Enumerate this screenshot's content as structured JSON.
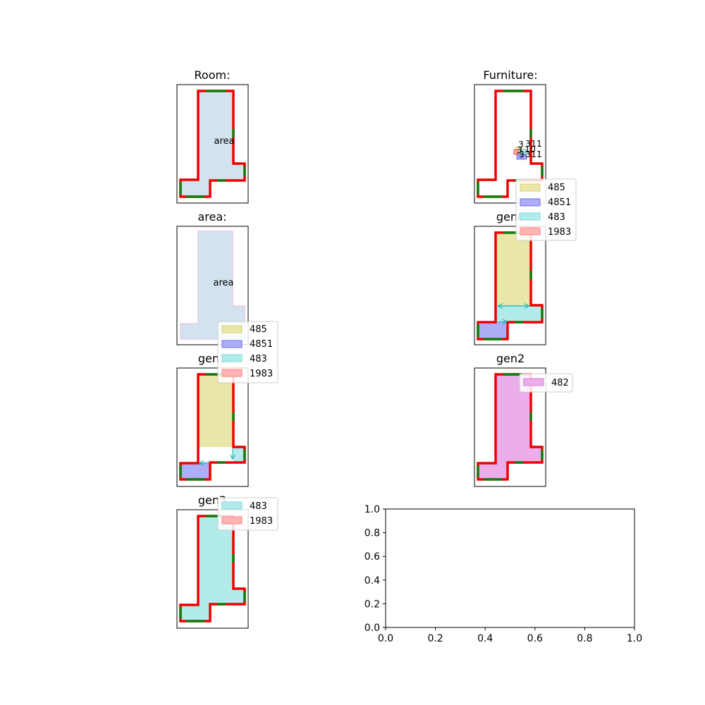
{
  "panels": {
    "room": {
      "title": "Room:",
      "label": "area"
    },
    "furniture": {
      "title": "Furniture:",
      "labels": [
        "3",
        "311",
        "3",
        "10",
        "3",
        "311"
      ]
    },
    "area": {
      "title": "area:",
      "label": "area"
    },
    "gen0": {
      "title": "gen0"
    },
    "gen1": {
      "title": "gen1"
    },
    "gen2": {
      "title": "gen2"
    },
    "gen3": {
      "title": "gen3"
    }
  },
  "legends": {
    "four": [
      "485",
      "4851",
      "483",
      "1983"
    ],
    "gen2": [
      "482"
    ],
    "gen3": [
      "483",
      "1983"
    ]
  },
  "colors": {
    "wall": "#ee0000",
    "door": "#108010",
    "area_fill": "#d2e3ef",
    "yellow": "#d4d06a",
    "blue": "#6b6bf2",
    "cyan": "#79dcdc",
    "red": "#ff8080",
    "magenta": "#d87bd8",
    "arrow": "#1ab3a6"
  },
  "empty_axes": {
    "xticks": [
      "0.0",
      "0.2",
      "0.4",
      "0.6",
      "0.8",
      "1.0"
    ],
    "yticks": [
      "0.0",
      "0.2",
      "0.4",
      "0.6",
      "0.8",
      "1.0"
    ]
  }
}
